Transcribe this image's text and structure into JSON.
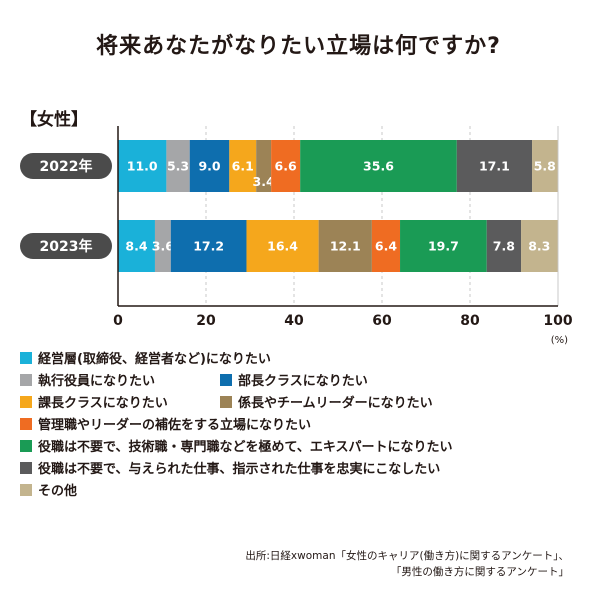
{
  "title": "将来あなたがなりたい立場は何ですか?",
  "section_label": "【女性】",
  "colors": {
    "executive": "#1ab1d9",
    "officer": "#a5a6a8",
    "director": "#0e6eae",
    "section_chief": "#f5a71c",
    "team_leader": "#9c8356",
    "manager_assist": "#ef6c22",
    "specialist": "#1a9b55",
    "no_promotion": "#5b5b5c",
    "other": "#c3b48e",
    "pill": "#4b4b4b",
    "grid": "#c8c8c8",
    "axis": "#231815"
  },
  "chart_data": {
    "type": "bar",
    "orientation": "horizontal",
    "stacked": true,
    "title": "将来あなたがなりたい立場は何ですか?",
    "xlim": [
      0,
      100
    ],
    "x_ticks": [
      "0",
      "20",
      "40",
      "60",
      "80",
      "100"
    ],
    "x_unit": "(%)",
    "categories": [
      "2022年",
      "2023年"
    ],
    "series": [
      {
        "name": "経営層(取締役、経営者など)になりたい",
        "color_key": "executive",
        "values": [
          11.0,
          8.4
        ],
        "labels": [
          "11.0",
          "8.4"
        ]
      },
      {
        "name": "執行役員になりたい",
        "color_key": "officer",
        "values": [
          5.3,
          3.6
        ],
        "labels": [
          "5.3",
          "3.6"
        ]
      },
      {
        "name": "部長クラスになりたい",
        "color_key": "director",
        "values": [
          9.0,
          17.2
        ],
        "labels": [
          "9.0",
          "17.2"
        ]
      },
      {
        "name": "課長クラスになりたい",
        "color_key": "section_chief",
        "values": [
          6.1,
          16.4
        ],
        "labels": [
          "6.1",
          "16.4"
        ]
      },
      {
        "name": "係長やチームリーダーになりたい",
        "color_key": "team_leader",
        "values": [
          3.4,
          12.1
        ],
        "labels": [
          "3.4",
          "12.1"
        ]
      },
      {
        "name": "管理職やリーダーの補佐をする立場になりたい",
        "color_key": "manager_assist",
        "values": [
          6.6,
          6.4
        ],
        "labels": [
          "6.6",
          "6.4"
        ]
      },
      {
        "name": "役職は不要で、技術職・専門職などを極めて、エキスパートになりたい",
        "color_key": "specialist",
        "values": [
          35.6,
          19.7
        ],
        "labels": [
          "35.6",
          "19.7"
        ]
      },
      {
        "name": "役職は不要で、与えられた仕事、指示された仕事を忠実にこなしたい",
        "color_key": "no_promotion",
        "values": [
          17.1,
          7.8
        ],
        "labels": [
          "17.1",
          "7.8"
        ]
      },
      {
        "name": "その他",
        "color_key": "other",
        "values": [
          5.8,
          8.3
        ],
        "labels": [
          "5.8",
          "8.3"
        ]
      }
    ],
    "grid": true,
    "legend_position": "bottom"
  },
  "legend_rows": [
    [
      {
        "label": "経営層(取締役、経営者など)になりたい",
        "color_key": "executive"
      }
    ],
    [
      {
        "label": "執行役員になりたい",
        "color_key": "officer"
      },
      {
        "label": "部長クラスになりたい",
        "color_key": "director"
      }
    ],
    [
      {
        "label": "課長クラスになりたい",
        "color_key": "section_chief"
      },
      {
        "label": "係長やチームリーダーになりたい",
        "color_key": "team_leader"
      }
    ],
    [
      {
        "label": "管理職やリーダーの補佐をする立場になりたい",
        "color_key": "manager_assist"
      }
    ],
    [
      {
        "label": "役職は不要で、技術職・専門職などを極めて、エキスパートになりたい",
        "color_key": "specialist"
      }
    ],
    [
      {
        "label": "役職は不要で、与えられた仕事、指示された仕事を忠実にこなしたい",
        "color_key": "no_promotion"
      }
    ],
    [
      {
        "label": "その他",
        "color_key": "other"
      }
    ]
  ],
  "source": {
    "line1": "出所:日経xwoman「女性のキャリア(働き方)に関するアンケート」、",
    "line2": "「男性の働き方に関するアンケート」"
  }
}
